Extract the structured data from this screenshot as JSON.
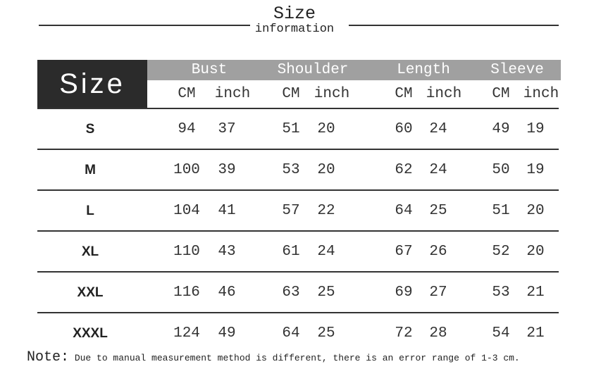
{
  "heading": {
    "title": "Size",
    "subtitle": "information"
  },
  "table": {
    "size_label": "Size",
    "columns": [
      {
        "label": "Bust",
        "units": [
          "CM",
          "inch"
        ]
      },
      {
        "label": "Shoulder",
        "units": [
          "CM",
          "inch"
        ]
      },
      {
        "label": "Length",
        "units": [
          "CM",
          "inch"
        ]
      },
      {
        "label": "Sleeve",
        "units": [
          "CM",
          "inch"
        ]
      }
    ],
    "rows": [
      {
        "size": "S",
        "values": [
          "94",
          "37",
          "51",
          "20",
          "60",
          "24",
          "49",
          "19"
        ]
      },
      {
        "size": "M",
        "values": [
          "100",
          "39",
          "53",
          "20",
          "62",
          "24",
          "50",
          "19"
        ]
      },
      {
        "size": "L",
        "values": [
          "104",
          "41",
          "57",
          "22",
          "64",
          "25",
          "51",
          "20"
        ]
      },
      {
        "size": "XL",
        "values": [
          "110",
          "43",
          "61",
          "24",
          "67",
          "26",
          "52",
          "20"
        ]
      },
      {
        "size": "XXL",
        "values": [
          "116",
          "46",
          "63",
          "25",
          "69",
          "27",
          "53",
          "21"
        ]
      },
      {
        "size": "XXXL",
        "values": [
          "124",
          "49",
          "64",
          "25",
          "72",
          "28",
          "54",
          "21"
        ]
      }
    ]
  },
  "note": {
    "label": "Note:",
    "text": " Due to manual measurement method is different, there is an error range of 1-3 cm."
  },
  "colors": {
    "header_dark": "#2b2b2b",
    "header_gray": "#a0a0a0"
  }
}
